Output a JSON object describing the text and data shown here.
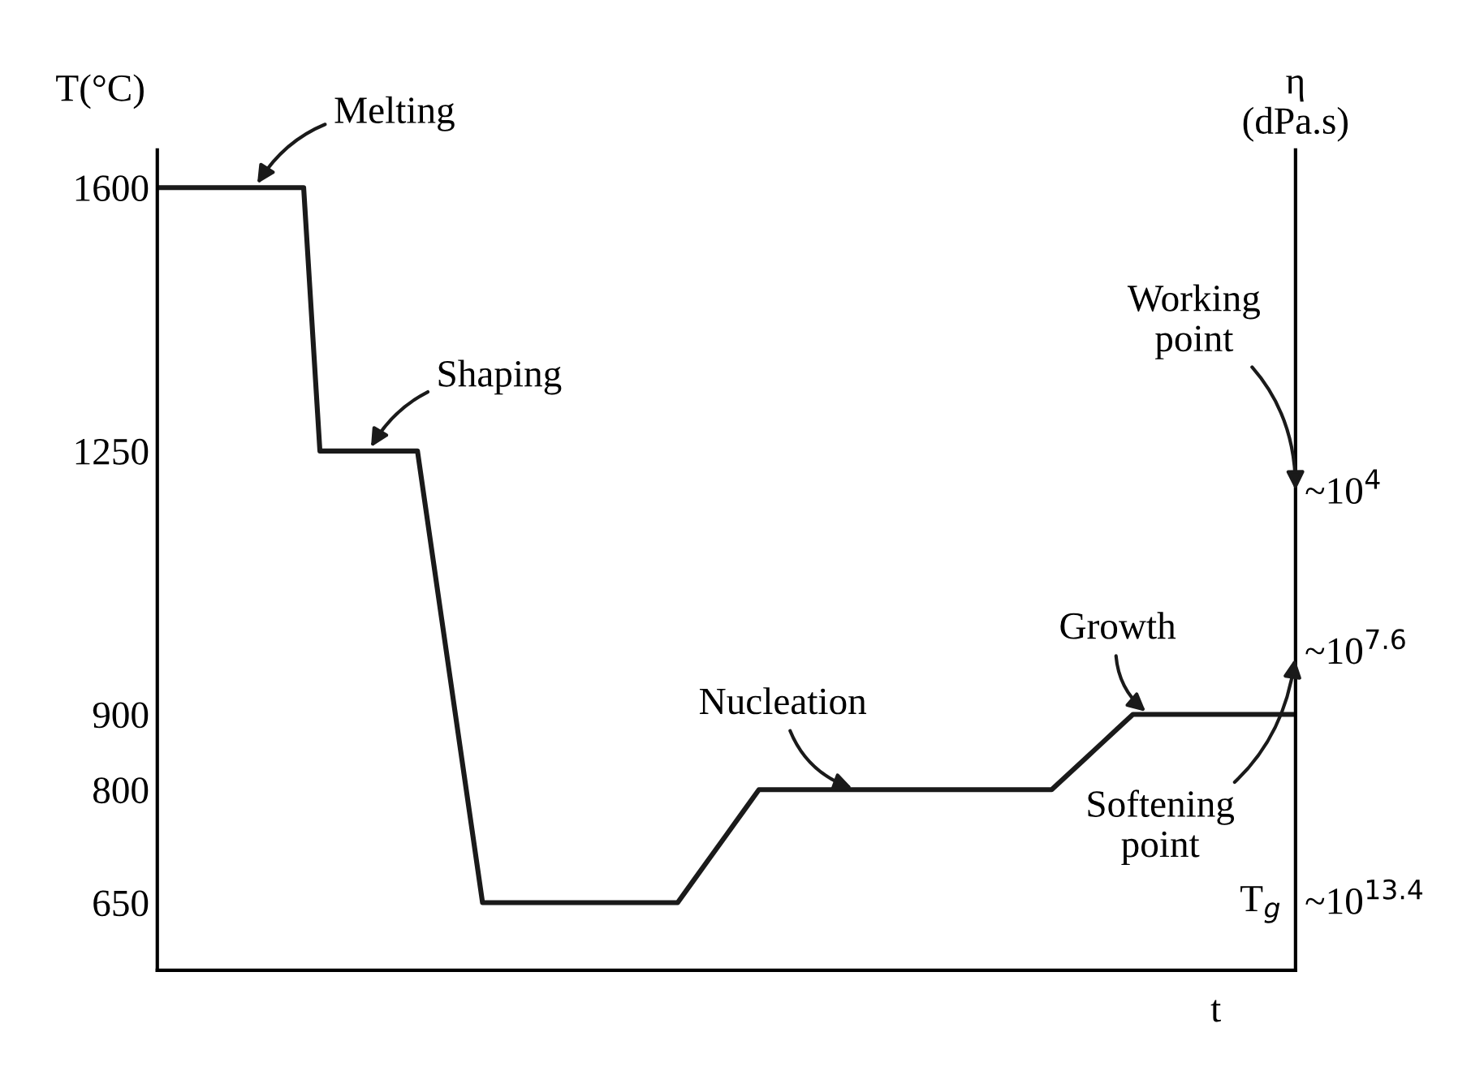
{
  "chart_data": {
    "type": "line",
    "xlabel": "t",
    "ylabel": "T(°C)",
    "y2label": "η\n(dPa.s)",
    "categories": [
      null,
      null,
      null,
      null,
      null,
      null,
      null,
      null,
      null,
      null,
      null,
      null,
      null,
      null,
      null,
      null,
      null,
      null,
      null,
      null,
      null,
      null,
      null,
      null,
      null,
      null,
      null,
      null,
      null,
      null,
      null,
      null,
      null,
      null,
      null,
      null,
      null,
      null,
      null,
      null,
      null,
      null,
      null,
      null,
      null,
      null,
      null,
      null,
      null,
      null,
      null,
      null,
      null,
      null,
      null,
      null,
      null,
      null,
      null,
      null,
      null,
      null,
      null,
      null,
      null,
      null,
      null,
      null,
      null,
      null,
      null
    ],
    "series": [
      {
        "color": "#1a1a1a",
        "values": [
          1600,
          1600,
          1600,
          1600,
          1600,
          1600,
          1600,
          1600,
          1600,
          1600,
          1250,
          1250,
          1250,
          1250,
          1250,
          1250,
          1250,
          1100,
          950,
          800,
          650,
          650,
          650,
          650,
          650,
          650,
          650,
          650,
          650,
          650,
          650,
          650,
          650,
          680,
          710,
          740,
          770,
          800,
          800,
          800,
          800,
          800,
          800,
          800,
          800,
          800,
          800,
          800,
          800,
          800,
          800,
          800,
          800,
          800,
          800,
          800,
          820,
          840,
          860,
          880,
          900,
          900,
          900,
          900,
          900,
          900,
          900,
          900,
          900,
          900,
          900
        ]
      }
    ],
    "tick_labels": "y",
    "ylim": [
      560,
      1650
    ],
    "yticks": [
      650,
      800,
      900,
      1250,
      1600
    ],
    "annotations": [
      "Melting",
      "Shaping",
      "Nucleation",
      "Growth",
      "~10$^{4}$",
      "~10$^{7.6}$",
      "~10$^{13.4}$",
      "Working\npoint",
      "Softening\npoint",
      "T$_{g}$"
    ],
    "grid": false,
    "legend": false,
    "marker": "none",
    "line_style": "solid"
  }
}
